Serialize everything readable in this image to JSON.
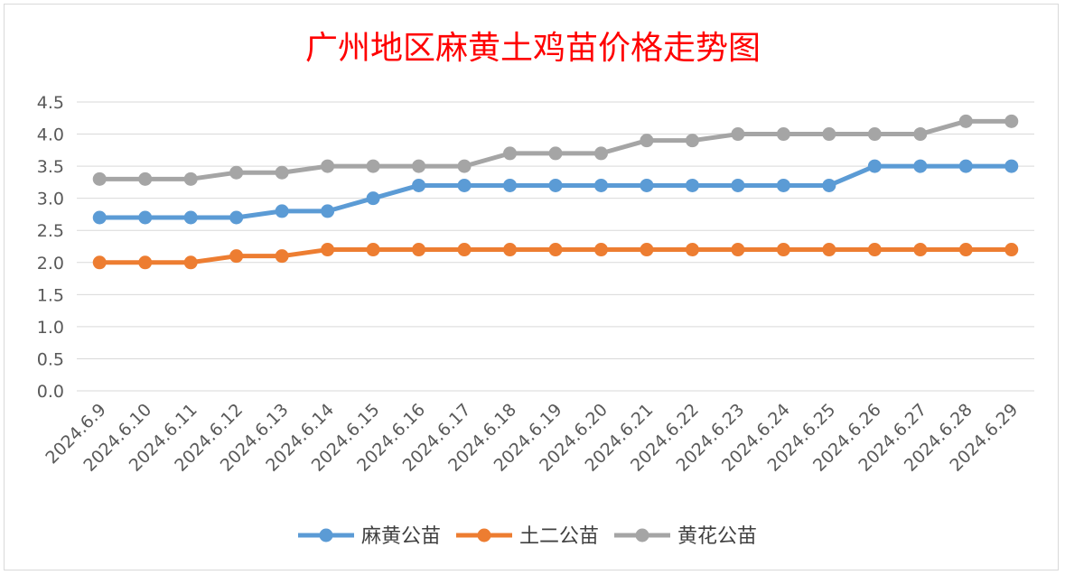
{
  "chart_data": {
    "type": "line",
    "title": "广州地区麻黄土鸡苗价格走势图",
    "title_color": "#ff0000",
    "categories": [
      "2024.6.9",
      "2024.6.10",
      "2024.6.11",
      "2024.6.12",
      "2024.6.13",
      "2024.6.14",
      "2024.6.15",
      "2024.6.16",
      "2024.6.17",
      "2024.6.18",
      "2024.6.19",
      "2024.6.20",
      "2024.6.21",
      "2024.6.22",
      "2024.6.23",
      "2024.6.24",
      "2024.6.25",
      "2024.6.26",
      "2024.6.27",
      "2024.6.28",
      "2024.6.29"
    ],
    "series": [
      {
        "name": "麻黄公苗",
        "color": "#5b9bd5",
        "values": [
          2.7,
          2.7,
          2.7,
          2.7,
          2.8,
          2.8,
          3.0,
          3.2,
          3.2,
          3.2,
          3.2,
          3.2,
          3.2,
          3.2,
          3.2,
          3.2,
          3.2,
          3.5,
          3.5,
          3.5,
          3.5
        ]
      },
      {
        "name": "土二公苗",
        "color": "#ed7d31",
        "values": [
          2.0,
          2.0,
          2.0,
          2.1,
          2.1,
          2.2,
          2.2,
          2.2,
          2.2,
          2.2,
          2.2,
          2.2,
          2.2,
          2.2,
          2.2,
          2.2,
          2.2,
          2.2,
          2.2,
          2.2,
          2.2
        ]
      },
      {
        "name": "黄花公苗",
        "color": "#a5a5a5",
        "values": [
          3.3,
          3.3,
          3.3,
          3.4,
          3.4,
          3.5,
          3.5,
          3.5,
          3.5,
          3.7,
          3.7,
          3.7,
          3.9,
          3.9,
          4.0,
          4.0,
          4.0,
          4.0,
          4.0,
          4.2,
          4.2
        ]
      }
    ],
    "ylim": [
      0,
      4.5
    ],
    "y_ticks": [
      "0.0",
      "0.5",
      "1.0",
      "1.5",
      "2.0",
      "2.5",
      "3.0",
      "3.5",
      "4.0",
      "4.5"
    ],
    "grid": true,
    "legend_position": "bottom"
  }
}
